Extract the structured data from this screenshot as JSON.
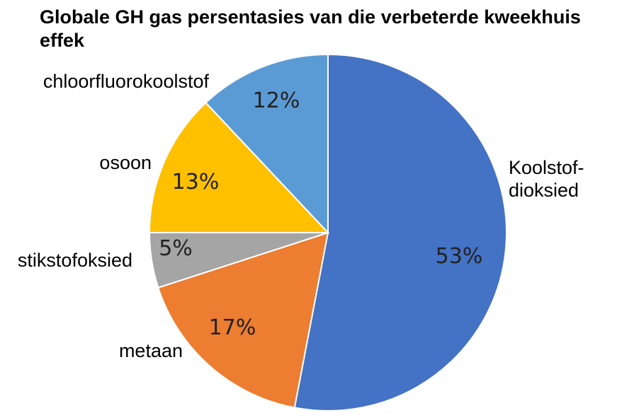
{
  "chart_data": {
    "type": "pie",
    "title": "Globale GH gas persentasies van die verbeterde kweekhuis effek",
    "slices": [
      {
        "label_lines": [
          "Koolstof-",
          "dioksied"
        ],
        "value": 53,
        "value_label": "53%",
        "color": "#4472C4"
      },
      {
        "label_lines": [
          "metaan"
        ],
        "value": 17,
        "value_label": "17%",
        "color": "#ED7D31"
      },
      {
        "label_lines": [
          "stikstofoksied"
        ],
        "value": 5,
        "value_label": "5%",
        "color": "#A5A5A5"
      },
      {
        "label_lines": [
          "osoon"
        ],
        "value": 13,
        "value_label": "13%",
        "color": "#FFC000"
      },
      {
        "label_lines": [
          "chloorfluorokoolstof"
        ],
        "value": 12,
        "value_label": "12%",
        "color": "#5B9BD5"
      }
    ],
    "start": "12 o'clock",
    "direction": "clockwise",
    "legend": "none"
  }
}
